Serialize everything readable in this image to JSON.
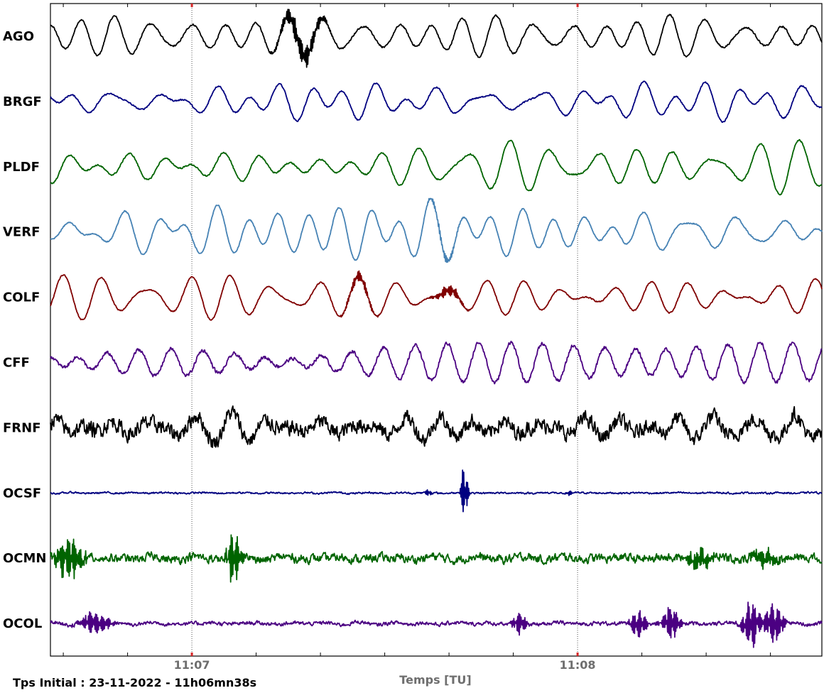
{
  "chart_data": {
    "type": "line",
    "xlabel": "Temps [TU]",
    "footer": "Tps Initial : 23-11-2022 - 11h06mn38s",
    "x_major_ticks": [
      {
        "label": "11:07",
        "seconds": 22
      },
      {
        "label": "11:08",
        "seconds": 82
      }
    ],
    "x_minor_tick_seconds": [
      2,
      12,
      32,
      42,
      52,
      62,
      72,
      92,
      102,
      112
    ],
    "xlim_seconds": [
      0,
      120
    ],
    "series": [
      {
        "name": "AGO",
        "color": "#000000",
        "amplitude": 22,
        "noise": 1.5,
        "smoothness": 0.35,
        "bursts": [
          {
            "t": 39,
            "amp": 18,
            "width": 3
          }
        ]
      },
      {
        "name": "BRGF",
        "color": "#000080",
        "amplitude": 22,
        "noise": 1.2,
        "smoothness": 0.35,
        "bursts": []
      },
      {
        "name": "PLDF",
        "color": "#006400",
        "amplitude": 26,
        "noise": 1.2,
        "smoothness": 0.33,
        "bursts": []
      },
      {
        "name": "VERF",
        "color": "#4682b4",
        "amplitude": 30,
        "noise": 1.0,
        "smoothness": 0.33,
        "bursts": [
          {
            "t": 61,
            "amp": 6,
            "width": 2
          }
        ]
      },
      {
        "name": "COLF",
        "color": "#800000",
        "amplitude": 30,
        "noise": 1.0,
        "smoothness": 0.33,
        "bursts": [
          {
            "t": 48,
            "amp": 8,
            "width": 2
          },
          {
            "t": 62,
            "amp": 8,
            "width": 2
          }
        ]
      },
      {
        "name": "CFF",
        "color": "#4b0082",
        "amplitude": 32,
        "noise": 3.0,
        "smoothness": 0.33,
        "bursts": []
      },
      {
        "name": "FRNF",
        "color": "#000000",
        "amplitude": 14,
        "noise": 14,
        "smoothness": 0.4,
        "bursts": []
      },
      {
        "name": "OCSF",
        "color": "#000080",
        "amplitude": 0.5,
        "noise": 1.8,
        "smoothness": 0.5,
        "bursts": [
          {
            "t": 64.4,
            "amp": 44,
            "width": 0.5
          },
          {
            "t": 58.8,
            "amp": 7,
            "width": 0.4
          },
          {
            "t": 80.6,
            "amp": 5,
            "width": 0.4
          }
        ]
      },
      {
        "name": "OCMN",
        "color": "#006400",
        "amplitude": 2,
        "noise": 9,
        "smoothness": 0.5,
        "bursts": [
          {
            "t": 3,
            "amp": 30,
            "width": 2
          },
          {
            "t": 28.5,
            "amp": 42,
            "width": 1
          },
          {
            "t": 101,
            "amp": 14,
            "width": 2
          },
          {
            "t": 111,
            "amp": 12,
            "width": 2
          }
        ]
      },
      {
        "name": "OCOL",
        "color": "#4b0082",
        "amplitude": 1.5,
        "noise": 4,
        "smoothness": 0.5,
        "bursts": [
          {
            "t": 7,
            "amp": 18,
            "width": 2
          },
          {
            "t": 73,
            "amp": 16,
            "width": 1
          },
          {
            "t": 91.5,
            "amp": 20,
            "width": 1.2
          },
          {
            "t": 96.5,
            "amp": 28,
            "width": 1.2
          },
          {
            "t": 109,
            "amp": 36,
            "width": 1.2
          },
          {
            "t": 112.5,
            "amp": 30,
            "width": 1.5
          }
        ]
      }
    ]
  }
}
